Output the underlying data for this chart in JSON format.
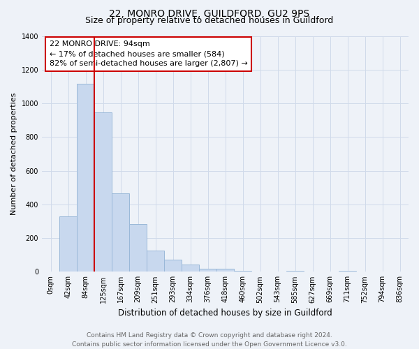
{
  "title": "22, MONRO DRIVE, GUILDFORD, GU2 9PS",
  "subtitle": "Size of property relative to detached houses in Guildford",
  "xlabel": "Distribution of detached houses by size in Guildford",
  "ylabel": "Number of detached properties",
  "bar_labels": [
    "0sqm",
    "42sqm",
    "84sqm",
    "125sqm",
    "167sqm",
    "209sqm",
    "251sqm",
    "293sqm",
    "334sqm",
    "376sqm",
    "418sqm",
    "460sqm",
    "502sqm",
    "543sqm",
    "585sqm",
    "627sqm",
    "669sqm",
    "711sqm",
    "752sqm",
    "794sqm",
    "836sqm"
  ],
  "bar_values": [
    0,
    328,
    1118,
    945,
    464,
    285,
    127,
    70,
    43,
    18,
    18,
    7,
    0,
    0,
    7,
    0,
    0,
    7,
    0,
    0,
    0
  ],
  "bar_color": "#c8d8ee",
  "bar_edge_color": "#9ab8d8",
  "vline_color": "#cc0000",
  "ylim": [
    0,
    1400
  ],
  "yticks": [
    0,
    200,
    400,
    600,
    800,
    1000,
    1200,
    1400
  ],
  "annotation_title": "22 MONRO DRIVE: 94sqm",
  "annotation_line1": "← 17% of detached houses are smaller (584)",
  "annotation_line2": "82% of semi-detached houses are larger (2,807) →",
  "annotation_box_facecolor": "#ffffff",
  "annotation_box_edgecolor": "#cc0000",
  "footer_line1": "Contains HM Land Registry data © Crown copyright and database right 2024.",
  "footer_line2": "Contains public sector information licensed under the Open Government Licence v3.0.",
  "background_color": "#eef2f8",
  "grid_color": "#d0daea",
  "title_fontsize": 10,
  "subtitle_fontsize": 9,
  "xlabel_fontsize": 8.5,
  "ylabel_fontsize": 8,
  "tick_fontsize": 7,
  "annotation_fontsize": 8,
  "footer_fontsize": 6.5
}
